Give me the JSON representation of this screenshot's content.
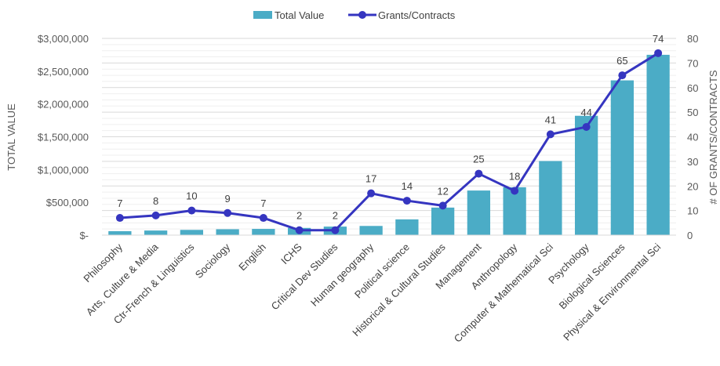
{
  "chart_data": {
    "type": "bar",
    "categories": [
      "Philosophy",
      "Arts, Culture & Media",
      "Ctr-French & Linguistics",
      "Sociology",
      "English",
      "ICHS",
      "Critical Dev Studies",
      "Human geography",
      "Political science",
      "Historical & Cultural Studies",
      "Management",
      "Anthropology",
      "Computer & Mathematical Sci",
      "Psychology",
      "Biological Sciences",
      "Physical & Environmental Sci"
    ],
    "series": [
      {
        "name": "Total Value",
        "type": "bar",
        "axis": "left",
        "color": "#4bacc6",
        "values": [
          60000,
          70000,
          80000,
          90000,
          95000,
          110000,
          130000,
          140000,
          240000,
          420000,
          680000,
          730000,
          1130000,
          1820000,
          2360000,
          2750000
        ]
      },
      {
        "name": "Grants/Contracts",
        "type": "line",
        "axis": "right",
        "color": "#3535c0",
        "values": [
          7,
          8,
          10,
          9,
          7,
          2,
          2,
          17,
          14,
          12,
          25,
          18,
          41,
          44,
          65,
          74
        ]
      }
    ],
    "ylabel": "TOTAL VALUE",
    "y2label": "# OF GRANTS/CONTRACTS",
    "ylim": [
      0,
      3000000
    ],
    "y2lim": [
      0,
      80
    ],
    "yticks": [
      "$-",
      "$500,000",
      "$1,000,000",
      "$1,500,000",
      "$2,000,000",
      "$2,500,000",
      "$3,000,000"
    ],
    "y2ticks": [
      "0",
      "10",
      "20",
      "30",
      "40",
      "50",
      "60",
      "70",
      "80"
    ],
    "legend_position": "top-center",
    "grid": true
  }
}
